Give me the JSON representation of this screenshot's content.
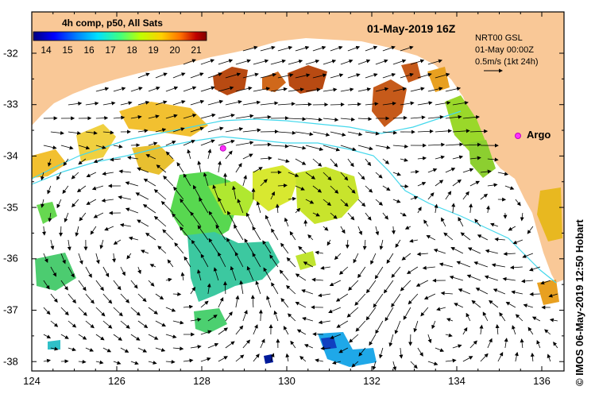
{
  "title": "01-May-2019 16Z",
  "colorbar": {
    "title": "4h comp, p50, All Sats",
    "ticks": [
      "14",
      "15",
      "16",
      "17",
      "18",
      "19",
      "20",
      "21"
    ],
    "colors": [
      "#00007f",
      "#0000ff",
      "#0080ff",
      "#00e0ff",
      "#40ff80",
      "#c0ff00",
      "#ffd000",
      "#ff7000",
      "#c00000",
      "#7f0000"
    ]
  },
  "current_info": {
    "source": "NRT00 GSL",
    "time": "01-May 00:00Z",
    "scale": "0.5m/s (1kt 24h)"
  },
  "argo_label": "Argo",
  "credit": "© IMOS 06-May-2019 12:50 Hobart",
  "axes": {
    "x_ticks": [
      "124",
      "126",
      "128",
      "130",
      "132",
      "134",
      "136"
    ],
    "y_ticks": [
      "-32",
      "-33",
      "-34",
      "-35",
      "-36",
      "-37",
      "-38"
    ],
    "lon_range": [
      124,
      136.5
    ],
    "lat_range": [
      -38.2,
      -31.4
    ]
  },
  "colors": {
    "land": "#f9c897",
    "contour": "#44d8ec",
    "argo": "#ff30ff"
  },
  "argo_float": {
    "lon": 128.5,
    "lat": -33.85
  }
}
